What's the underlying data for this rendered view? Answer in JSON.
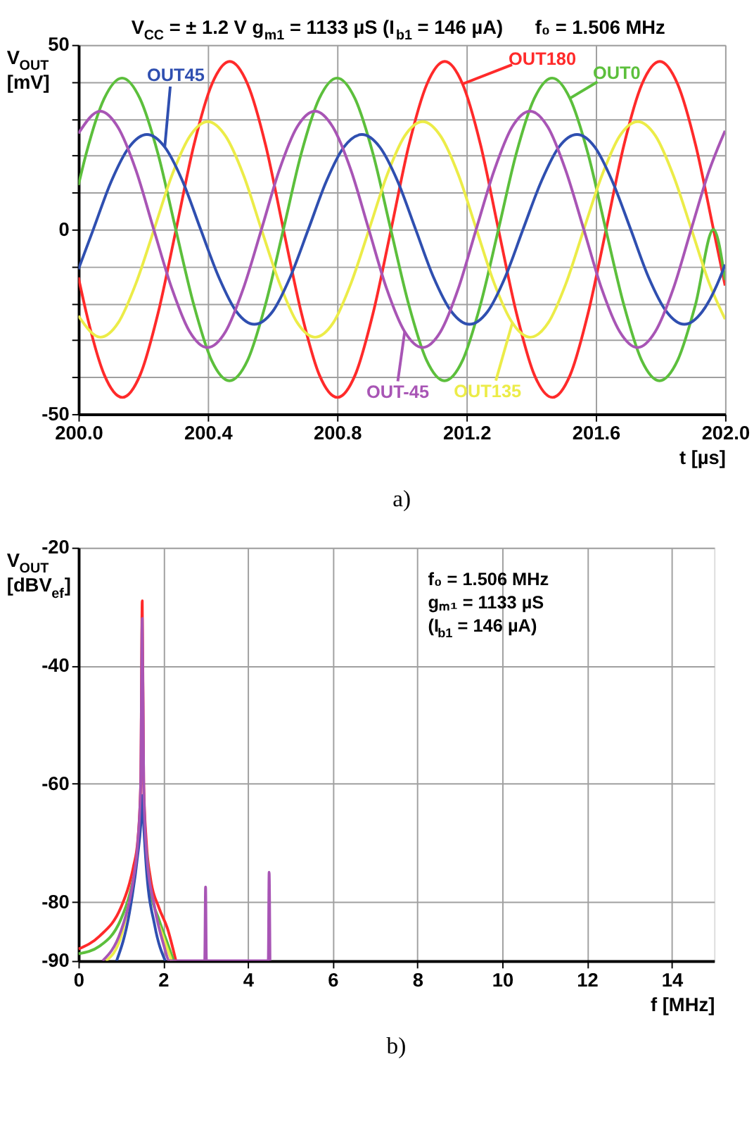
{
  "chart_data": [
    {
      "type": "line",
      "title": "V$_{CC}$ = ± 1.2 V g$_{m1}$ = 1133 µS (I$_{b1}$ = 146 µA)      f₀ = 1.506 MHz",
      "xlabel": "t [µs]",
      "ylabel": "V$_{OUT}$ [mV]",
      "xlim": [
        200.0,
        202.0
      ],
      "ylim": [
        -50,
        50
      ],
      "xticks": [
        {
          "value": 200.0,
          "label": "200.0"
        },
        {
          "value": 200.4,
          "label": "200.4"
        },
        {
          "value": 200.8,
          "label": "200.8"
        },
        {
          "value": 201.2,
          "label": "201.2"
        },
        {
          "value": 201.6,
          "label": "201.6"
        },
        {
          "value": 202.0,
          "label": "202.0"
        }
      ],
      "yticks": [
        -50,
        {
          "value": -40,
          "label": null
        },
        {
          "value": -30,
          "label": null
        },
        {
          "value": -20,
          "label": null
        },
        {
          "value": -10,
          "label": null
        },
        0,
        {
          "value": 10,
          "label": null
        },
        {
          "value": 20,
          "label": null
        },
        {
          "value": 30,
          "label": null
        },
        {
          "value": 40,
          "label": null
        },
        50
      ],
      "grid": true,
      "line_style": "solid",
      "annotations": [
        "a)"
      ],
      "series": [
        {
          "name": "OUT180",
          "color": "#ff2a2a",
          "x": [
            200.0,
            200.025,
            200.08,
            200.136,
            200.191,
            200.246,
            200.302,
            200.357,
            200.413,
            200.468,
            200.523,
            200.579,
            200.634,
            200.69,
            200.745,
            200.801,
            200.856,
            200.911,
            200.967,
            201.022,
            201.078,
            201.133,
            201.188,
            201.244,
            201.299,
            201.355,
            201.41,
            201.466,
            201.521,
            201.576,
            201.632,
            201.687,
            201.743,
            201.798,
            201.853,
            201.909,
            201.964,
            202.0
          ],
          "values": [
            -13,
            -22.8,
            -39.4,
            -45.5,
            -39.4,
            -22.8,
            0,
            22.8,
            39.4,
            45.5,
            39.4,
            22.8,
            0,
            -22.8,
            -39.4,
            -45.5,
            -39.4,
            -22.8,
            0,
            22.8,
            39.4,
            45.5,
            39.4,
            22.8,
            0,
            -22.8,
            -39.4,
            -45.5,
            -39.4,
            -22.8,
            0,
            22.8,
            39.4,
            45.5,
            39.4,
            22.8,
            0,
            -15.2
          ]
        },
        {
          "name": "OUT0",
          "color": "#5cbf3c",
          "x": [
            200.0,
            200.024,
            200.08,
            200.135,
            200.19,
            200.246,
            200.301,
            200.357,
            200.412,
            200.467,
            200.523,
            200.578,
            200.634,
            200.689,
            200.745,
            200.8,
            200.855,
            200.911,
            200.966,
            201.022,
            201.077,
            201.132,
            201.188,
            201.243,
            201.299,
            201.354,
            201.41,
            201.465,
            201.52,
            201.576,
            201.631,
            201.687,
            201.742,
            201.797,
            201.853,
            201.908,
            201.964,
            202.0
          ],
          "values": [
            12,
            20.5,
            35.5,
            41,
            35.5,
            20.5,
            0,
            -20.5,
            -35.5,
            -41,
            -35.5,
            -20.5,
            0,
            20.5,
            35.5,
            41,
            35.5,
            20.5,
            0,
            -20.5,
            -35.5,
            -41,
            -35.5,
            -20.5,
            0,
            20.5,
            35.5,
            41,
            35.5,
            20.5,
            0,
            -20.5,
            -35.5,
            -41,
            -35.5,
            -20.5,
            0,
            -13.7
          ]
        },
        {
          "name": "OUT135",
          "color": "#ecec48",
          "x": [
            200.0,
            200.068,
            200.123,
            200.178,
            200.234,
            200.289,
            200.345,
            200.4,
            200.455,
            200.511,
            200.566,
            200.622,
            200.677,
            200.732,
            200.788,
            200.843,
            200.899,
            200.954,
            201.009,
            201.065,
            201.12,
            201.176,
            201.231,
            201.286,
            201.342,
            201.397,
            201.453,
            201.508,
            201.563,
            201.619,
            201.674,
            201.73,
            201.785,
            201.84,
            201.896,
            201.951,
            202.0
          ],
          "values": [
            -23.4,
            -29.2,
            -25.3,
            -14.6,
            0,
            14.6,
            25.3,
            29.2,
            25.3,
            14.6,
            0,
            -14.6,
            -25.3,
            -29.2,
            -25.3,
            -14.6,
            0,
            14.6,
            25.3,
            29.2,
            25.3,
            14.6,
            0,
            -14.6,
            -25.3,
            -29.2,
            -25.3,
            -14.6,
            0,
            14.6,
            25.3,
            29.2,
            25.3,
            14.6,
            0,
            -14.6,
            -24.3
          ]
        },
        {
          "name": "OUT45",
          "color": "#2f4fb0",
          "x": [
            200.0,
            200.046,
            200.101,
            200.157,
            200.212,
            200.267,
            200.323,
            200.378,
            200.434,
            200.489,
            200.544,
            200.6,
            200.655,
            200.711,
            200.766,
            200.821,
            200.877,
            200.932,
            200.988,
            201.043,
            201.098,
            201.154,
            201.209,
            201.265,
            201.32,
            201.375,
            201.431,
            201.486,
            201.542,
            201.597,
            201.652,
            201.708,
            201.763,
            201.819,
            201.874,
            201.929,
            201.985,
            202.0
          ],
          "values": [
            -10.8,
            0,
            12.9,
            22.3,
            25.7,
            22.3,
            12.9,
            0,
            -12.9,
            -22.3,
            -25.7,
            -22.3,
            -12.9,
            0,
            12.9,
            22.3,
            25.7,
            22.3,
            12.9,
            0,
            -12.9,
            -22.3,
            -25.7,
            -22.3,
            -12.9,
            0,
            12.9,
            22.3,
            25.7,
            22.3,
            12.9,
            0,
            -12.9,
            -22.3,
            -25.7,
            -22.3,
            -12.9,
            -9.5
          ]
        },
        {
          "name": "OUT-45",
          "color": "#a855b5",
          "x": [
            200.0,
            200.067,
            200.122,
            200.178,
            200.233,
            200.289,
            200.344,
            200.399,
            200.455,
            200.51,
            200.566,
            200.621,
            200.676,
            200.732,
            200.787,
            200.843,
            200.898,
            200.953,
            201.009,
            201.064,
            201.12,
            201.175,
            201.23,
            201.286,
            201.341,
            201.397,
            201.452,
            201.507,
            201.563,
            201.618,
            201.674,
            201.729,
            201.784,
            201.84,
            201.895,
            201.951,
            202.0
          ],
          "values": [
            26,
            32,
            27.7,
            16,
            0,
            -16,
            -27.7,
            -32,
            -27.7,
            -16,
            0,
            16,
            27.7,
            32,
            27.7,
            16,
            0,
            -16,
            -27.7,
            -32,
            -27.7,
            -16,
            0,
            16,
            27.7,
            32,
            27.7,
            16,
            0,
            -16,
            -27.7,
            -32,
            -27.7,
            -16,
            0,
            16,
            26.7
          ]
        }
      ]
    },
    {
      "type": "line",
      "xlabel": "f [MHz]",
      "ylabel": "V$_{OUT}$ [dBV$_{ef}$]",
      "xlim": [
        0,
        15
      ],
      "ylim": [
        -90,
        -20
      ],
      "xticks": [
        0,
        2,
        4,
        6,
        8,
        10,
        12,
        14
      ],
      "yticks": [
        -90,
        -80,
        -60,
        -40,
        -20
      ],
      "grid": true,
      "line_style": "solid",
      "annotations": [
        "f₀ = 1.506 MHz",
        "gₘ₁ = 1133 µS",
        "(I$_{b1}$ = 146 µA)",
        "b)"
      ],
      "series": [
        {
          "color": "#ff2a2a",
          "x": [
            0,
            0.5,
            1.0,
            1.2,
            1.3,
            1.4,
            1.47,
            1.506,
            1.54,
            1.6,
            1.7,
            1.9,
            2.1,
            2.3
          ],
          "values": [
            -88,
            -85.8,
            -81,
            -77,
            -74,
            -69.6,
            -60,
            -29,
            -60,
            -69.6,
            -76,
            -81,
            -84.5,
            -90
          ]
        },
        {
          "color": "#5cbf3c",
          "x": [
            0,
            0.5,
            1.0,
            1.2,
            1.3,
            1.4,
            1.47,
            1.506,
            1.54,
            1.6,
            1.7,
            1.9,
            2.1,
            2.25
          ],
          "values": [
            -88.8,
            -87.5,
            -83,
            -79,
            -76,
            null,
            null,
            null,
            null,
            -71,
            -78,
            -83,
            -87,
            -90
          ]
        },
        {
          "color": "#ecec48",
          "x": [
            0.65,
            1.0,
            1.2,
            1.3,
            1.4,
            1.47,
            1.506,
            1.54,
            1.6,
            1.9,
            2.2
          ],
          "values": [
            -90,
            -86,
            -80,
            null,
            null,
            null,
            null,
            null,
            null,
            -84,
            -90
          ]
        },
        {
          "color": "#2f4fb0",
          "x": [
            0.9,
            1.2,
            1.4,
            1.47,
            1.506,
            1.54,
            1.6,
            1.8,
            2.05
          ],
          "values": [
            -90,
            -82,
            -72,
            -67,
            -62,
            -67,
            -74,
            -84,
            -90
          ]
        },
        {
          "color": "#a855b5",
          "x": [
            0.57,
            1.0,
            1.2,
            1.3,
            1.4,
            1.47,
            1.506,
            1.54,
            1.6,
            1.8,
            2.0,
            2.15,
            2.98,
            3.0,
            3.02,
            4.48,
            4.5,
            4.52
          ],
          "values": [
            -90,
            -85,
            -80,
            -76,
            -70,
            -60,
            -32,
            -60,
            -71,
            -81,
            -87,
            -90,
            -90,
            -77.5,
            -90,
            -90,
            -75,
            -90
          ]
        }
      ]
    }
  ]
}
